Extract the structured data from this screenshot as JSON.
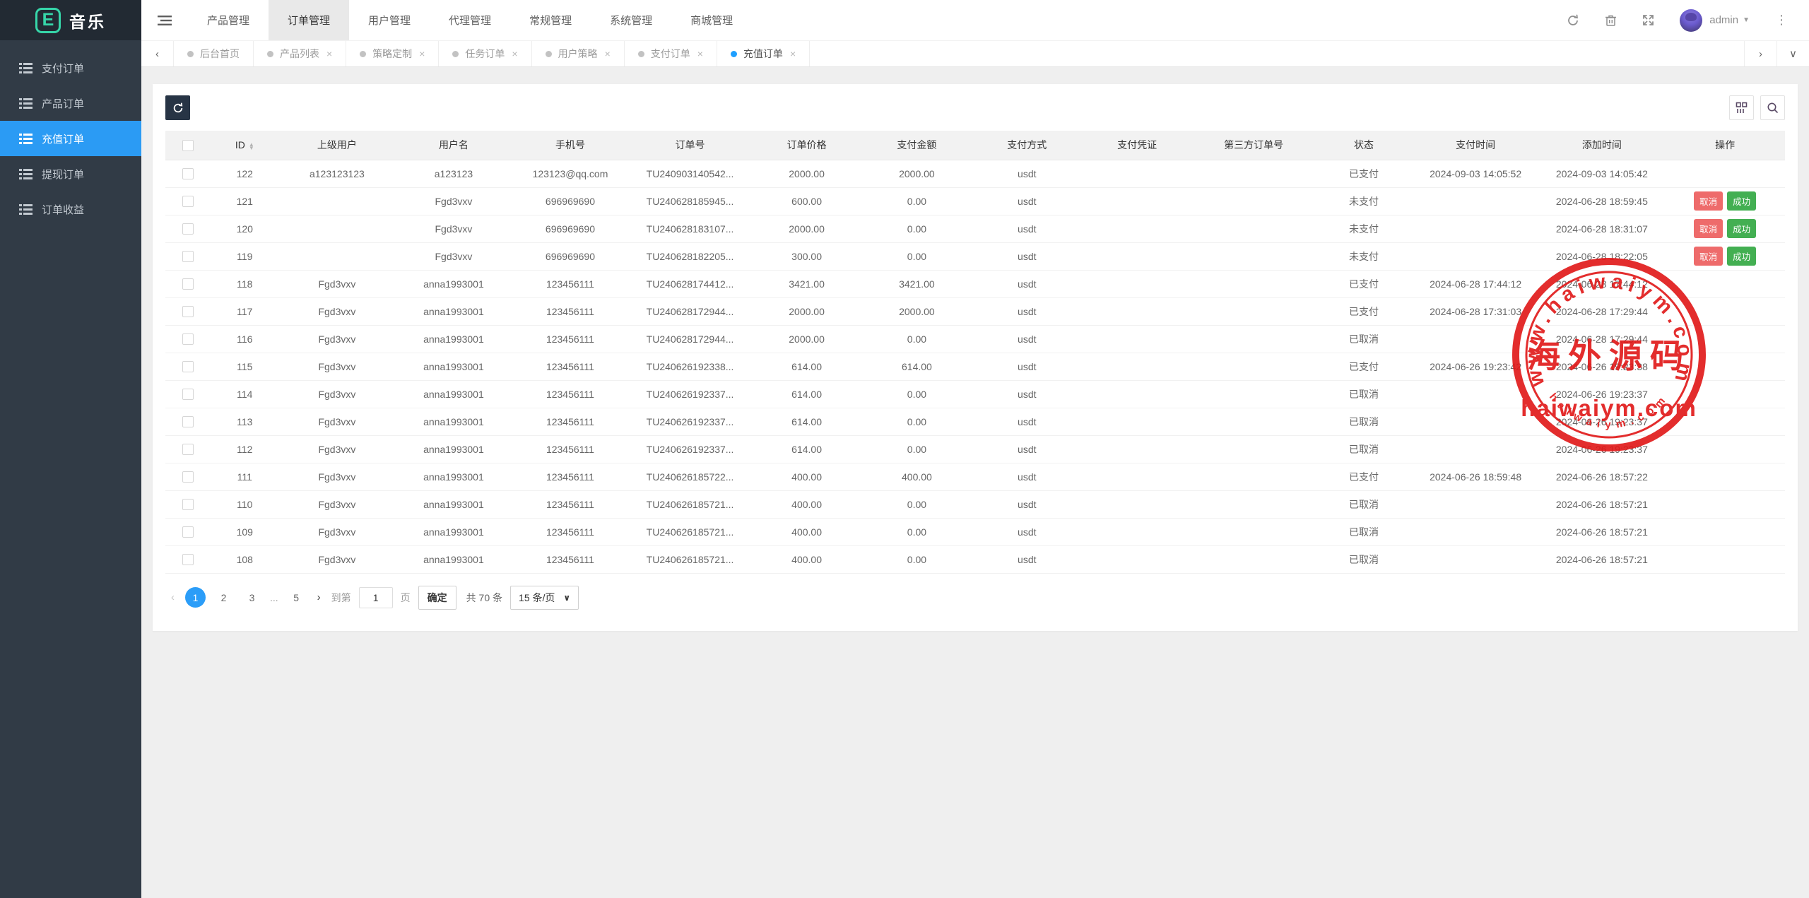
{
  "brand": {
    "logo_letter": "E",
    "title": "音乐"
  },
  "sidebar": {
    "items": [
      {
        "label": "支付订单",
        "active": false
      },
      {
        "label": "产品订单",
        "active": false
      },
      {
        "label": "充值订单",
        "active": true
      },
      {
        "label": "提现订单",
        "active": false
      },
      {
        "label": "订单收益",
        "active": false
      }
    ]
  },
  "topnav": {
    "items": [
      {
        "label": "产品管理",
        "active": false
      },
      {
        "label": "订单管理",
        "active": true
      },
      {
        "label": "用户管理",
        "active": false
      },
      {
        "label": "代理管理",
        "active": false
      },
      {
        "label": "常规管理",
        "active": false
      },
      {
        "label": "系统管理",
        "active": false
      },
      {
        "label": "商城管理",
        "active": false
      }
    ],
    "user": {
      "name": "admin"
    }
  },
  "tabbar": {
    "tabs": [
      {
        "label": "后台首页",
        "active": false,
        "closable": false
      },
      {
        "label": "产品列表",
        "active": false,
        "closable": true
      },
      {
        "label": "策略定制",
        "active": false,
        "closable": true
      },
      {
        "label": "任务订单",
        "active": false,
        "closable": true
      },
      {
        "label": "用户策略",
        "active": false,
        "closable": true
      },
      {
        "label": "支付订单",
        "active": false,
        "closable": true
      },
      {
        "label": "充值订单",
        "active": true,
        "closable": true
      }
    ]
  },
  "table": {
    "columns": [
      "ID",
      "上级用户",
      "用户名",
      "手机号",
      "订单号",
      "订单价格",
      "支付金额",
      "支付方式",
      "支付凭证",
      "第三方订单号",
      "状态",
      "支付时间",
      "添加时间",
      "操作"
    ],
    "action_labels": {
      "cancel": "取消",
      "success": "成功"
    },
    "rows": [
      {
        "id": "122",
        "parent_user": "a123123123",
        "username": "a123123",
        "phone": "123123@qq.com",
        "order_no": "TU240903140542...",
        "price": "2000.00",
        "paid_amount": "2000.00",
        "pay_method": "usdt",
        "voucher": "",
        "third_order_no": "",
        "status": "已支付",
        "pay_time": "2024-09-03 14:05:52",
        "add_time": "2024-09-03 14:05:42",
        "has_actions": false
      },
      {
        "id": "121",
        "parent_user": "",
        "username": "Fgd3vxv",
        "phone": "696969690",
        "order_no": "TU240628185945...",
        "price": "600.00",
        "paid_amount": "0.00",
        "pay_method": "usdt",
        "voucher": "",
        "third_order_no": "",
        "status": "未支付",
        "pay_time": "",
        "add_time": "2024-06-28 18:59:45",
        "has_actions": true
      },
      {
        "id": "120",
        "parent_user": "",
        "username": "Fgd3vxv",
        "phone": "696969690",
        "order_no": "TU240628183107...",
        "price": "2000.00",
        "paid_amount": "0.00",
        "pay_method": "usdt",
        "voucher": "",
        "third_order_no": "",
        "status": "未支付",
        "pay_time": "",
        "add_time": "2024-06-28 18:31:07",
        "has_actions": true
      },
      {
        "id": "119",
        "parent_user": "",
        "username": "Fgd3vxv",
        "phone": "696969690",
        "order_no": "TU240628182205...",
        "price": "300.00",
        "paid_amount": "0.00",
        "pay_method": "usdt",
        "voucher": "",
        "third_order_no": "",
        "status": "未支付",
        "pay_time": "",
        "add_time": "2024-06-28 18:22:05",
        "has_actions": true
      },
      {
        "id": "118",
        "parent_user": "Fgd3vxv",
        "username": "anna1993001",
        "phone": "123456111",
        "order_no": "TU240628174412...",
        "price": "3421.00",
        "paid_amount": "3421.00",
        "pay_method": "usdt",
        "voucher": "",
        "third_order_no": "",
        "status": "已支付",
        "pay_time": "2024-06-28 17:44:12",
        "add_time": "2024-06-28 17:44:12",
        "has_actions": false
      },
      {
        "id": "117",
        "parent_user": "Fgd3vxv",
        "username": "anna1993001",
        "phone": "123456111",
        "order_no": "TU240628172944...",
        "price": "2000.00",
        "paid_amount": "2000.00",
        "pay_method": "usdt",
        "voucher": "",
        "third_order_no": "",
        "status": "已支付",
        "pay_time": "2024-06-28 17:31:03",
        "add_time": "2024-06-28 17:29:44",
        "has_actions": false
      },
      {
        "id": "116",
        "parent_user": "Fgd3vxv",
        "username": "anna1993001",
        "phone": "123456111",
        "order_no": "TU240628172944...",
        "price": "2000.00",
        "paid_amount": "0.00",
        "pay_method": "usdt",
        "voucher": "",
        "third_order_no": "",
        "status": "已取消",
        "pay_time": "",
        "add_time": "2024-06-28 17:29:44",
        "has_actions": false
      },
      {
        "id": "115",
        "parent_user": "Fgd3vxv",
        "username": "anna1993001",
        "phone": "123456111",
        "order_no": "TU240626192338...",
        "price": "614.00",
        "paid_amount": "614.00",
        "pay_method": "usdt",
        "voucher": "",
        "third_order_no": "",
        "status": "已支付",
        "pay_time": "2024-06-26 19:23:42",
        "add_time": "2024-06-26 19:23:38",
        "has_actions": false
      },
      {
        "id": "114",
        "parent_user": "Fgd3vxv",
        "username": "anna1993001",
        "phone": "123456111",
        "order_no": "TU240626192337...",
        "price": "614.00",
        "paid_amount": "0.00",
        "pay_method": "usdt",
        "voucher": "",
        "third_order_no": "",
        "status": "已取消",
        "pay_time": "",
        "add_time": "2024-06-26 19:23:37",
        "has_actions": false
      },
      {
        "id": "113",
        "parent_user": "Fgd3vxv",
        "username": "anna1993001",
        "phone": "123456111",
        "order_no": "TU240626192337...",
        "price": "614.00",
        "paid_amount": "0.00",
        "pay_method": "usdt",
        "voucher": "",
        "third_order_no": "",
        "status": "已取消",
        "pay_time": "",
        "add_time": "2024-06-26 19:23:37",
        "has_actions": false
      },
      {
        "id": "112",
        "parent_user": "Fgd3vxv",
        "username": "anna1993001",
        "phone": "123456111",
        "order_no": "TU240626192337...",
        "price": "614.00",
        "paid_amount": "0.00",
        "pay_method": "usdt",
        "voucher": "",
        "third_order_no": "",
        "status": "已取消",
        "pay_time": "",
        "add_time": "2024-06-26 19:23:37",
        "has_actions": false
      },
      {
        "id": "111",
        "parent_user": "Fgd3vxv",
        "username": "anna1993001",
        "phone": "123456111",
        "order_no": "TU240626185722...",
        "price": "400.00",
        "paid_amount": "400.00",
        "pay_method": "usdt",
        "voucher": "",
        "third_order_no": "",
        "status": "已支付",
        "pay_time": "2024-06-26 18:59:48",
        "add_time": "2024-06-26 18:57:22",
        "has_actions": false
      },
      {
        "id": "110",
        "parent_user": "Fgd3vxv",
        "username": "anna1993001",
        "phone": "123456111",
        "order_no": "TU240626185721...",
        "price": "400.00",
        "paid_amount": "0.00",
        "pay_method": "usdt",
        "voucher": "",
        "third_order_no": "",
        "status": "已取消",
        "pay_time": "",
        "add_time": "2024-06-26 18:57:21",
        "has_actions": false
      },
      {
        "id": "109",
        "parent_user": "Fgd3vxv",
        "username": "anna1993001",
        "phone": "123456111",
        "order_no": "TU240626185721...",
        "price": "400.00",
        "paid_amount": "0.00",
        "pay_method": "usdt",
        "voucher": "",
        "third_order_no": "",
        "status": "已取消",
        "pay_time": "",
        "add_time": "2024-06-26 18:57:21",
        "has_actions": false
      },
      {
        "id": "108",
        "parent_user": "Fgd3vxv",
        "username": "anna1993001",
        "phone": "123456111",
        "order_no": "TU240626185721...",
        "price": "400.00",
        "paid_amount": "0.00",
        "pay_method": "usdt",
        "voucher": "",
        "third_order_no": "",
        "status": "已取消",
        "pay_time": "",
        "add_time": "2024-06-26 18:57:21",
        "has_actions": false
      }
    ]
  },
  "pagination": {
    "pages": [
      "1",
      "2",
      "3",
      "...",
      "5"
    ],
    "current": "1",
    "goto_label": "到第",
    "goto_value": "1",
    "page_unit": "页",
    "confirm_label": "确定",
    "total_label": "共 70 条",
    "per_page_label": "15 条/页"
  },
  "watermark": {
    "arc_top": "www.haiwaiym.com",
    "center_cn": "海外源码",
    "center_en": "haiwaiym.com",
    "arc_bottom": "haiwaiym.com",
    "color": "#e01717"
  },
  "colors": {
    "accent_blue": "#2b9bf4",
    "tab_dot_active": "#1e9fff",
    "cancel_btn": "#ee6b6b",
    "success_btn": "#43af52",
    "stamp_red": "#e01717"
  }
}
